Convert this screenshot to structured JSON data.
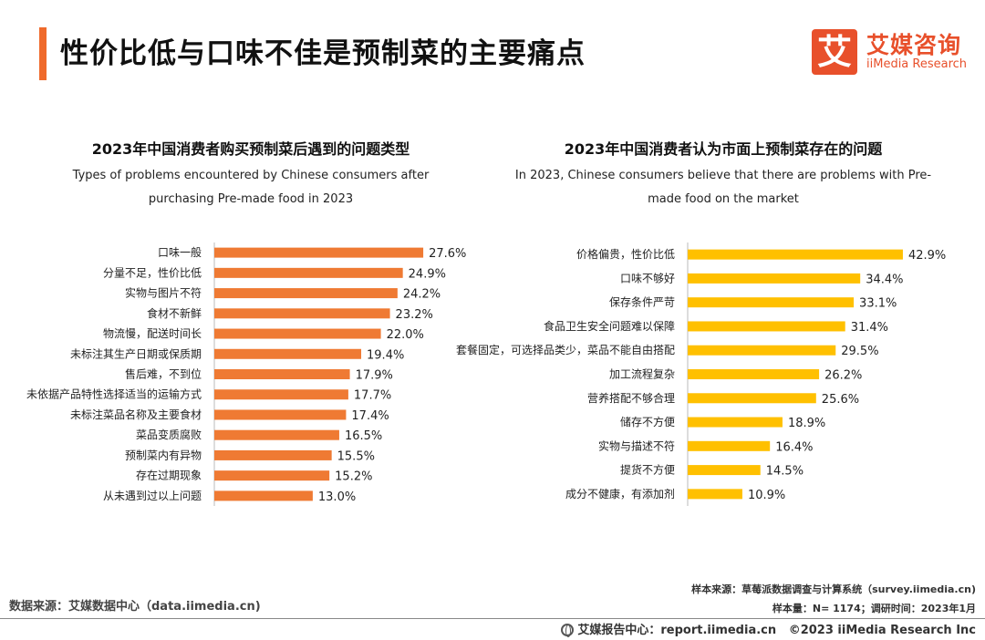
{
  "header": {
    "title": "性价比低与口味不佳是预制菜的主要痛点",
    "logo_mark": "艾",
    "logo_cn": "艾媒咨询",
    "logo_en": "iiMedia Research"
  },
  "colors": {
    "accent": "#ef6a2b",
    "left_bar": "#ef7a33",
    "right_bar": "#ffc000"
  },
  "left_chart": {
    "title_cn": "2023年中国消费者购买预制菜后遇到的问题类型",
    "title_en_line1": "Types of problems encountered by Chinese consumers after",
    "title_en_line2": "purchasing Pre-made food in 2023"
  },
  "right_chart": {
    "title_cn": "2023年中国消费者认为市面上预制菜存在的问题",
    "title_en_line1": "In 2023, Chinese consumers believe that there are problems with Pre-",
    "title_en_line2": "made food on the market"
  },
  "chart_data": [
    {
      "type": "bar",
      "orientation": "horizontal",
      "title": "2023年中国消费者购买预制菜后遇到的问题类型",
      "categories": [
        "口味一般",
        "分量不足，性价比低",
        "实物与图片不符",
        "食材不新鲜",
        "物流慢，配送时间长",
        "未标注其生产日期或保质期",
        "售后难，不到位",
        "未依据产品特性选择适当的运输方式",
        "未标注菜品名称及主要食材",
        "菜品变质腐败",
        "预制菜内有异物",
        "存在过期现象",
        "从未遇到过以上问题"
      ],
      "values": [
        27.6,
        24.9,
        24.2,
        23.2,
        22.0,
        19.4,
        17.9,
        17.7,
        17.4,
        16.5,
        15.5,
        15.2,
        13.0
      ],
      "labels": [
        "27.6%",
        "24.9%",
        "24.2%",
        "23.2%",
        "22.0%",
        "19.4%",
        "17.9%",
        "17.7%",
        "17.4%",
        "16.5%",
        "15.5%",
        "15.2%",
        "13.0%"
      ],
      "unit": "%"
    },
    {
      "type": "bar",
      "orientation": "horizontal",
      "title": "2023年中国消费者认为市面上预制菜存在的问题",
      "categories": [
        "价格偏贵，性价比低",
        "口味不够好",
        "保存条件严苛",
        "食品卫生安全问题难以保障",
        "套餐固定，可选择品类少，菜品不能自由搭配",
        "加工流程复杂",
        "营养搭配不够合理",
        "储存不方便",
        "实物与描述不符",
        "提货不方便",
        "成分不健康，有添加剂"
      ],
      "values": [
        42.9,
        34.4,
        33.1,
        31.4,
        29.5,
        26.2,
        25.6,
        18.9,
        16.4,
        14.5,
        10.9
      ],
      "labels": [
        "42.9%",
        "34.4%",
        "33.1%",
        "31.4%",
        "29.5%",
        "26.2%",
        "25.6%",
        "18.9%",
        "16.4%",
        "14.5%",
        "10.9%"
      ],
      "unit": "%"
    }
  ],
  "footer": {
    "source": "数据来源：艾媒数据中心（data.iimedia.cn)",
    "sample_source": "样本来源：草莓派数据调查与计算系统（survey.iimedia.cn)",
    "sample_size": "样本量：N= 1174；调研时间：2023年1月",
    "report_center": "艾媒报告中心：report.iimedia.cn",
    "copyright": "©2023  iiMedia Research  Inc"
  }
}
